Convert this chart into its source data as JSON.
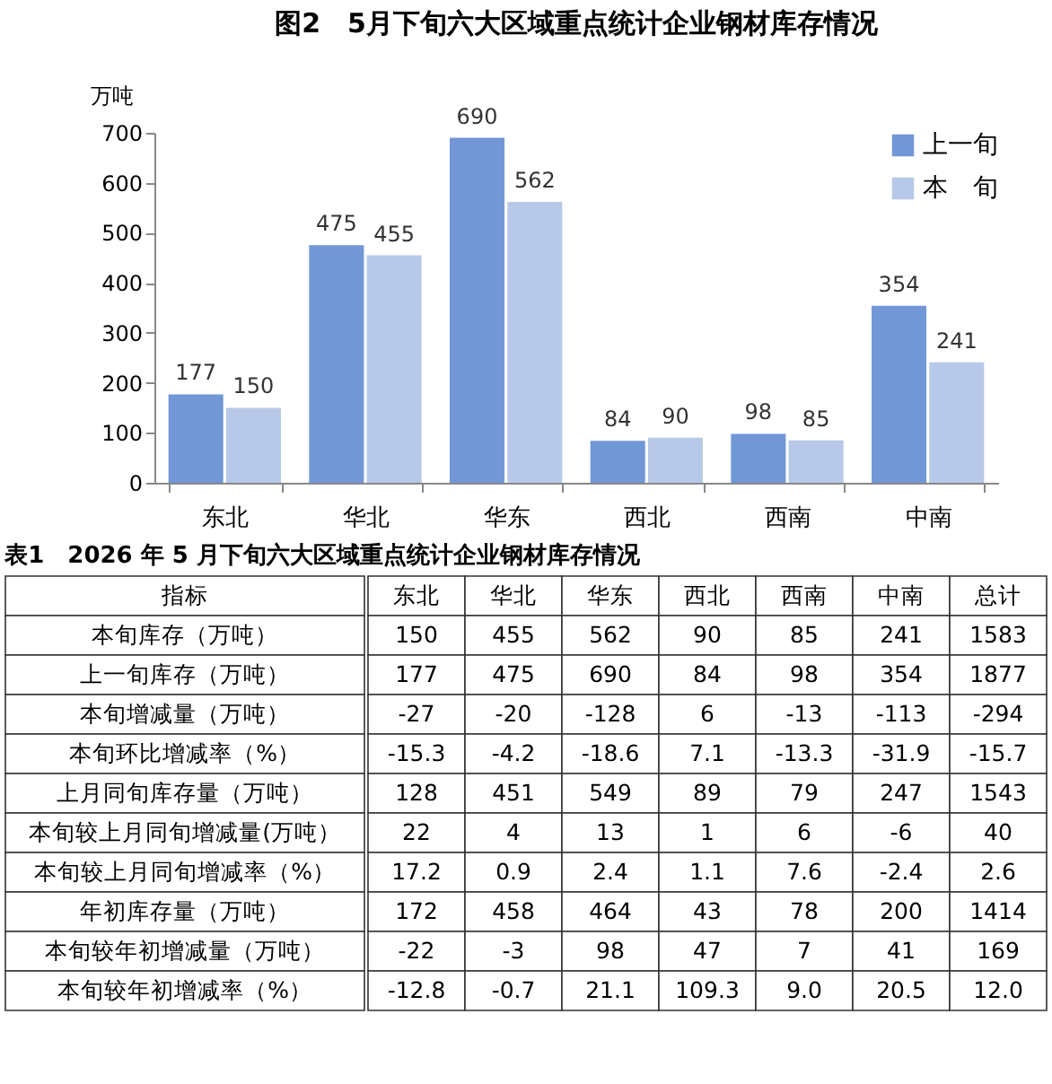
{
  "chart_data": [
    {
      "type": "bar",
      "title": "图2　5月下旬六大区域重点统计企业钢材库存情况",
      "ylabel": "万吨",
      "categories": [
        "东北",
        "华北",
        "华东",
        "西北",
        "西南",
        "中南"
      ],
      "series": [
        {
          "name": "上一旬",
          "color": "#7297d6",
          "values": [
            177,
            475,
            690,
            84,
            98,
            354
          ]
        },
        {
          "name": "本　旬",
          "color": "#b7c8e8",
          "values": [
            150,
            455,
            562,
            90,
            85,
            241
          ]
        }
      ],
      "ylim": [
        0,
        700
      ],
      "yticks": [
        0,
        100,
        200,
        300,
        400,
        500,
        600,
        700
      ],
      "grid": false,
      "legend": "top right",
      "data_labels": true
    },
    {
      "type": "other",
      "title": "表1　2026 年 5 月下旬六大区域重点统计企业钢材库存情况",
      "ylabel": "指标",
      "categories": [
        "东北",
        "华北",
        "华东",
        "西北",
        "西南",
        "中南",
        "总计"
      ],
      "data_labels": true,
      "series": [
        {
          "name": "本旬库存（万吨）",
          "values": [
            150,
            455,
            562,
            90,
            85,
            241,
            1583
          ]
        },
        {
          "name": "上一旬库存（万吨）",
          "values": [
            177,
            475,
            690,
            84,
            98,
            354,
            1877
          ]
        },
        {
          "name": "本旬增减量（万吨）",
          "values": [
            -27,
            -20,
            -128,
            6,
            -13,
            -113,
            -294
          ]
        },
        {
          "name": "本旬环比增减率（%）",
          "values": [
            -15.3,
            -4.2,
            -18.6,
            7.1,
            -13.3,
            -31.9,
            -15.7
          ]
        },
        {
          "name": "上月同旬库存量（万吨）",
          "values": [
            128,
            451,
            549,
            89,
            79,
            247,
            1543
          ]
        },
        {
          "name": "本旬较上月同旬增减量(万吨）",
          "values": [
            22,
            4,
            13,
            1,
            6,
            -6,
            40
          ]
        },
        {
          "name": "本旬较上月同旬增减率（%）",
          "values": [
            17.2,
            0.9,
            2.4,
            1.1,
            7.6,
            -2.4,
            2.6
          ]
        },
        {
          "name": "年初库存量（万吨）",
          "values": [
            172,
            458,
            464,
            43,
            78,
            200,
            1414
          ]
        },
        {
          "name": "本旬较年初增减量（万吨）",
          "values": [
            -22,
            -3,
            98,
            47,
            7,
            41,
            169
          ]
        },
        {
          "name": "本旬较年初增减率（%）",
          "values": [
            -12.8,
            -0.7,
            21.1,
            109.3,
            9.0,
            20.5,
            12.0
          ],
          "value_labels": [
            "-12.8",
            "-0.7",
            "21.1",
            "109.3",
            "9.0",
            "20.5",
            "12.0"
          ]
        }
      ]
    }
  ]
}
